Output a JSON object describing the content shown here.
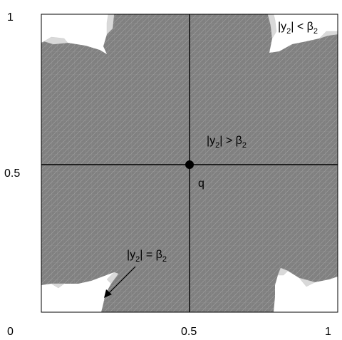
{
  "axes": {
    "x_ticks": [
      "0",
      "0.5",
      "1"
    ],
    "y_ticks": [
      "1",
      "0.5"
    ]
  },
  "point": {
    "label": "q",
    "x": 0.5,
    "y": 0.5
  },
  "regions": {
    "shaded_label": {
      "pre": "|y",
      "sub": "2",
      "mid": "| > β",
      "sub2": "2"
    },
    "corner_label": {
      "pre": "|y",
      "sub": "2",
      "mid": "| < β",
      "sub2": "2"
    },
    "boundary_label": {
      "pre": "|y",
      "sub": "2",
      "mid": "| = β",
      "sub2": "2"
    }
  },
  "colors": {
    "region_fill": "#808080",
    "mesh_line": "#a6a6a6",
    "light_fill": "#d9d9d9",
    "outside_fill": "#ffffff",
    "axis": "#000000"
  }
}
